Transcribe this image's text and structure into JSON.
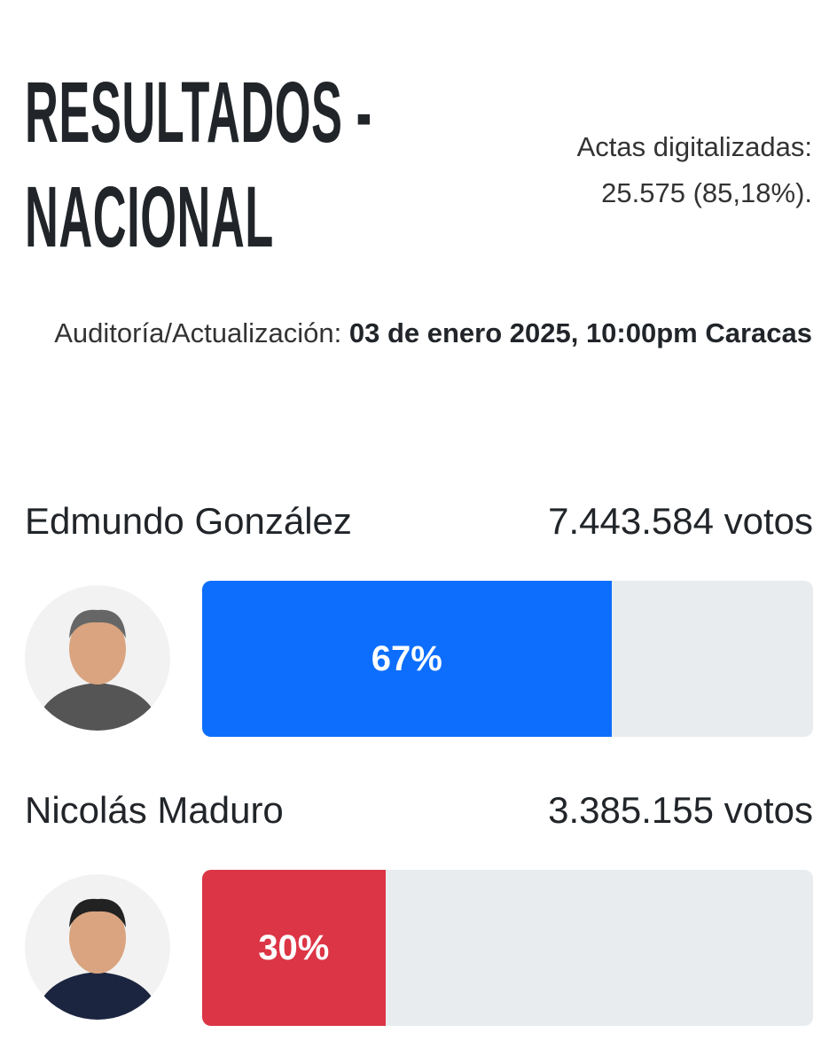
{
  "header": {
    "title": "RESULTADOS - NACIONAL",
    "actas": "Actas digitalizadas: 25.575 (85,18%).",
    "audit_label": "Auditoría/Actualización:",
    "audit_value": "03 de enero 2025, 10:00pm Caracas"
  },
  "candidates": [
    {
      "name": "Edmundo González",
      "votes": "7.443.584 votos",
      "percent": 67,
      "percent_label": "67%",
      "color": "#0d6efd"
    },
    {
      "name": "Nicolás Maduro",
      "votes": "3.385.155 votos",
      "percent": 30,
      "percent_label": "30%",
      "color": "#dc3545"
    }
  ]
}
